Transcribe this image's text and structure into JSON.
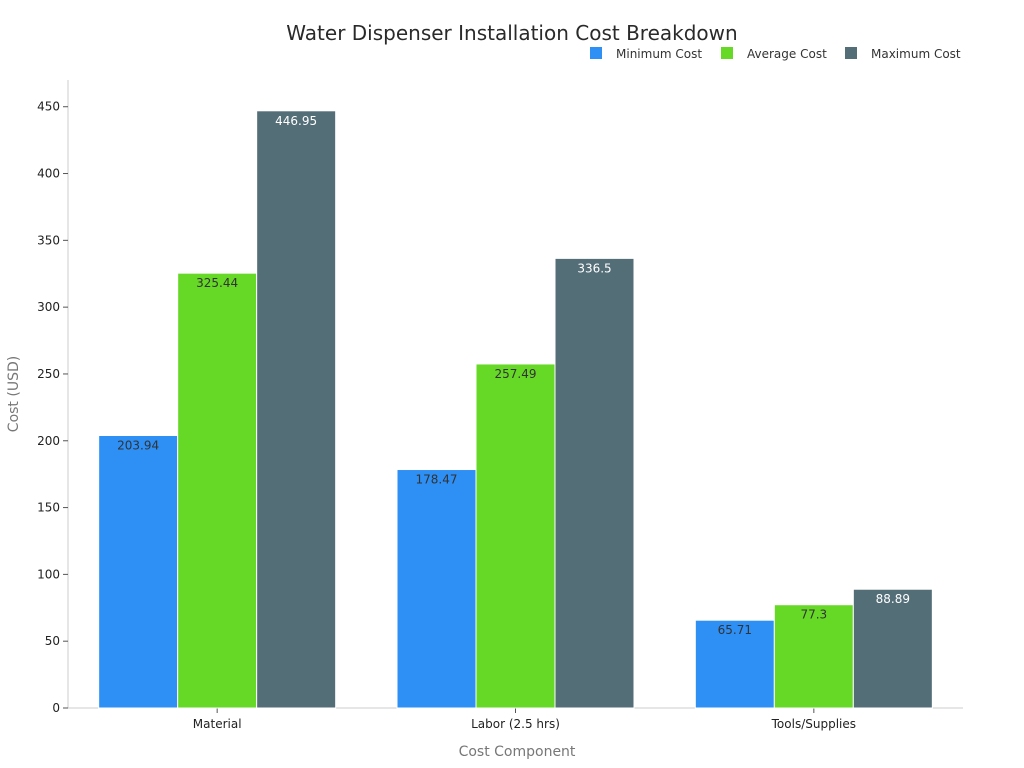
{
  "chart_data": {
    "type": "bar",
    "title": "Water Dispenser Installation Cost Breakdown",
    "xlabel": "Cost Component",
    "ylabel": "Cost (USD)",
    "categories": [
      "Material",
      "Labor (2.5 hrs)",
      "Tools/Supplies"
    ],
    "series": [
      {
        "name": "Minimum Cost",
        "color": "#2e8ff5",
        "label_color": "#333333",
        "values": [
          203.94,
          178.47,
          65.71
        ]
      },
      {
        "name": "Average Cost",
        "color": "#66d926",
        "label_color": "#333333",
        "values": [
          325.44,
          257.49,
          77.3
        ]
      },
      {
        "name": "Maximum Cost",
        "color": "#546e78",
        "label_color": "#ffffff",
        "values": [
          446.95,
          336.5,
          88.89
        ]
      }
    ],
    "ylim": [
      0,
      470
    ],
    "yticks": [
      0,
      50,
      100,
      150,
      200,
      250,
      300,
      350,
      400,
      450
    ],
    "grid": false,
    "legend_position": "top-right"
  }
}
